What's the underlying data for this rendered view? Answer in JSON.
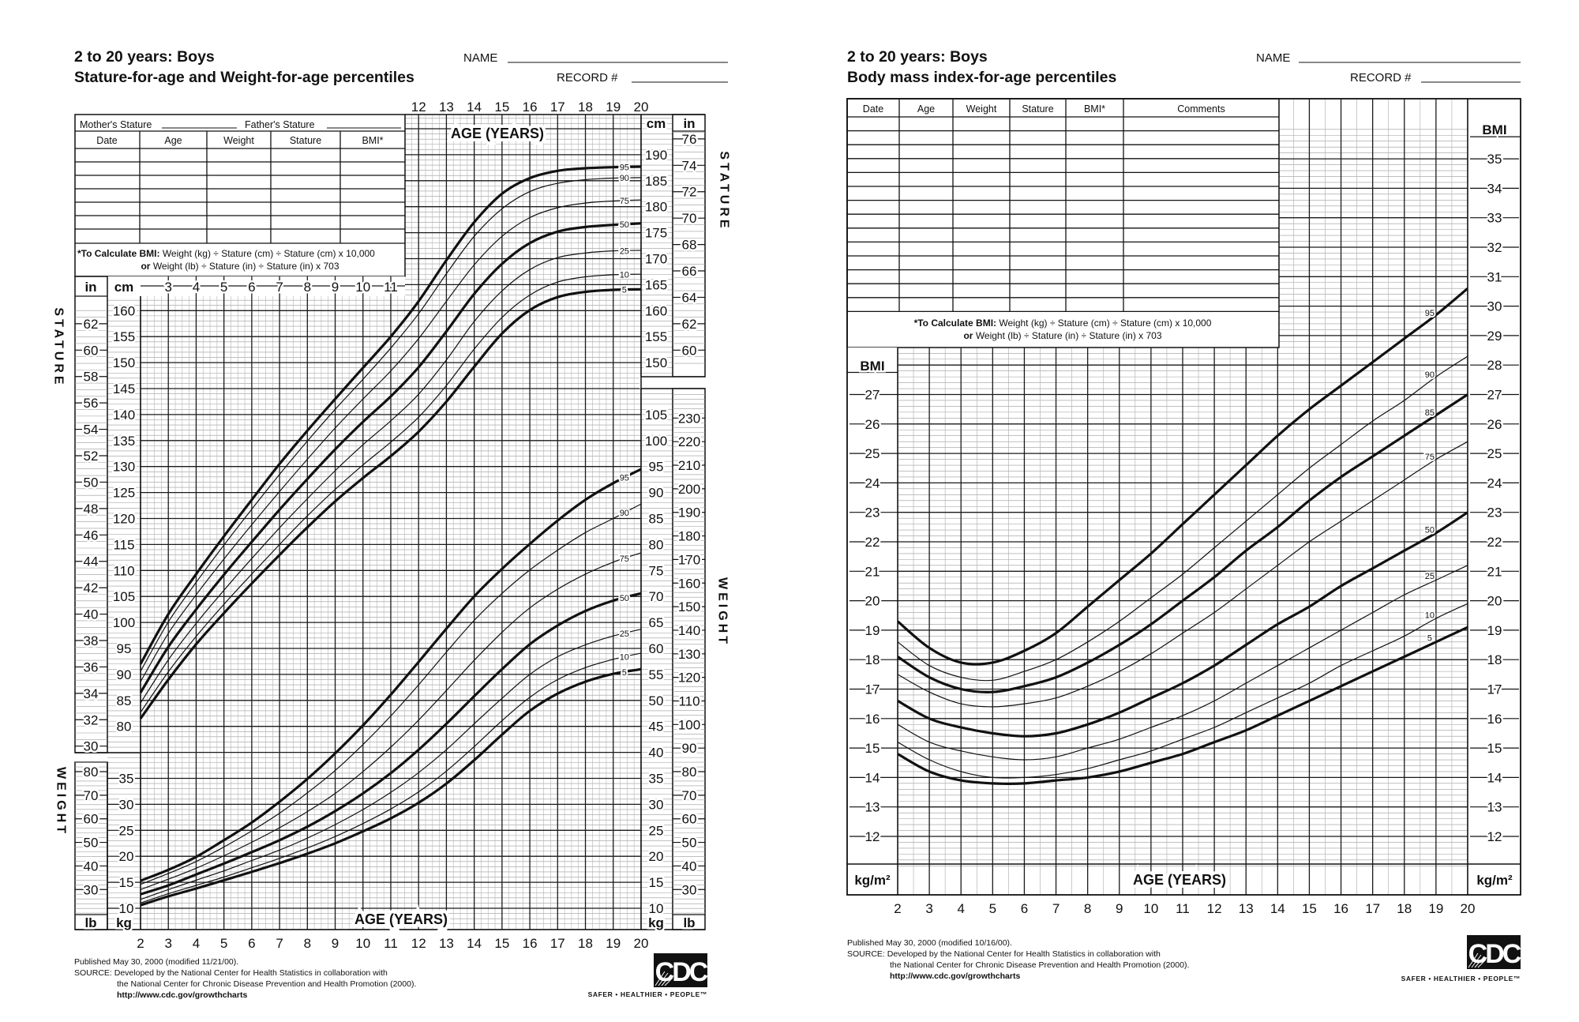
{
  "left_sheet": {
    "title_line1": "2 to 20 years: Boys",
    "title_line2": "Stature-for-age and Weight-for-age percentiles",
    "name_label": "NAME",
    "record_label": "RECORD #",
    "mothers_stature": "Mother's Stature",
    "fathers_stature": "Father's Stature",
    "table_headers": [
      "Date",
      "Age",
      "Weight",
      "Stature",
      "BMI*"
    ],
    "formula_bold": "*To Calculate BMI:",
    "formula_line1": "Weight (kg) ÷ Stature (cm) ÷ Stature (cm) x 10,000",
    "formula_bold2": "or",
    "formula_line2": "Weight (lb) ÷ Stature (in) ÷ Stature (in) x 703",
    "age_axis_top": "AGE (YEARS)",
    "age_axis_bottom": "AGE (YEARS)",
    "stature_label": "STATURE",
    "weight_label": "WEIGHT",
    "unit_in": "in",
    "unit_cm": "cm",
    "unit_lb": "lb",
    "unit_kg": "kg",
    "footer": {
      "published": "Published May 30, 2000 (modified 11/21/00).",
      "source1": "SOURCE: Developed by the National Center for Health Statistics in collaboration with",
      "source2": "the National Center for Chronic Disease Prevention and Health Promotion (2000).",
      "url": "http://www.cdc.gov/growthcharts"
    },
    "logo_text": "CDC",
    "tagline": "SAFER • HEALTHIER • PEOPLE™"
  },
  "right_sheet": {
    "title_line1": "2 to 20 years: Boys",
    "title_line2": "Body mass index-for-age percentiles",
    "name_label": "NAME",
    "record_label": "RECORD #",
    "table_headers": [
      "Date",
      "Age",
      "Weight",
      "Stature",
      "BMI*",
      "Comments"
    ],
    "formula_bold": "*To Calculate BMI:",
    "formula_line1": "Weight (kg) ÷ Stature (cm) ÷ Stature (cm) x 10,000",
    "formula_bold2": "or",
    "formula_line2": "Weight (lb) ÷ Stature (in) ÷ Stature (in) x 703",
    "bmi_label_left": "BMI",
    "bmi_label_right": "BMI",
    "unit_left": "kg/m²",
    "unit_right": "kg/m²",
    "age_axis": "AGE (YEARS)",
    "footer": {
      "published": "Published May 30, 2000 (modified 10/16/00).",
      "source1": "SOURCE: Developed by the National Center for Health Statistics in collaboration with",
      "source2": "the National Center for Chronic Disease Prevention and Health Promotion (2000).",
      "url": "http://www.cdc.gov/growthcharts"
    },
    "logo_text": "CDC",
    "tagline": "SAFER • HEALTHIER • PEOPLE™"
  },
  "colors": {
    "ink": "#111111",
    "grid_minor": "#9a9a9a",
    "grid_major": "#1a1a1a",
    "paper": "#ffffff"
  },
  "chart_data": [
    {
      "type": "line",
      "xlabel": "AGE (YEARS)",
      "ylabel": "STATURE",
      "x": [
        2,
        3,
        4,
        5,
        6,
        7,
        8,
        9,
        10,
        11,
        12,
        13,
        14,
        15,
        16,
        17,
        18,
        19,
        20
      ],
      "x_ticks": [
        "2",
        "3",
        "4",
        "5",
        "6",
        "7",
        "8",
        "9",
        "10",
        "11",
        "12",
        "13",
        "14",
        "15",
        "16",
        "17",
        "18",
        "19",
        "20"
      ],
      "xlim": [
        2,
        20
      ],
      "y_units": [
        "cm",
        "in"
      ],
      "y_ticks_cm_left": [
        "80",
        "85",
        "90",
        "95",
        "100",
        "105",
        "110",
        "115",
        "120",
        "125",
        "130",
        "135",
        "140",
        "145",
        "150",
        "155",
        "160"
      ],
      "y_ticks_cm_right": [
        "150",
        "155",
        "160",
        "165",
        "170",
        "175",
        "180",
        "185",
        "190"
      ],
      "y_ticks_in_left": [
        "30",
        "32",
        "34",
        "36",
        "38",
        "40",
        "42",
        "44",
        "46",
        "48",
        "50",
        "52",
        "54",
        "56",
        "58",
        "60",
        "62"
      ],
      "y_ticks_in_right": [
        "60",
        "62",
        "64",
        "66",
        "68",
        "70",
        "72",
        "74",
        "76"
      ],
      "grid": true,
      "series": [
        {
          "name": "95",
          "values": [
            92.0,
            101.6,
            109.3,
            116.6,
            123.6,
            130.5,
            136.9,
            143.0,
            149.0,
            155.0,
            161.8,
            169.7,
            177.0,
            182.5,
            185.5,
            186.9,
            187.4,
            187.6,
            187.7
          ]
        },
        {
          "name": "90",
          "values": [
            90.6,
            100.1,
            107.7,
            114.9,
            121.8,
            128.5,
            134.9,
            141.0,
            146.8,
            152.8,
            159.4,
            167.1,
            174.3,
            179.6,
            182.9,
            184.5,
            185.2,
            185.5,
            185.6
          ]
        },
        {
          "name": "75",
          "values": [
            88.6,
            97.9,
            105.3,
            112.2,
            118.8,
            125.2,
            131.4,
            137.4,
            143.0,
            148.4,
            154.6,
            161.8,
            168.8,
            174.3,
            177.9,
            179.8,
            180.7,
            181.1,
            181.3
          ]
        },
        {
          "name": "50",
          "values": [
            86.5,
            95.3,
            102.5,
            109.2,
            115.5,
            121.7,
            127.6,
            133.3,
            138.6,
            143.5,
            149.1,
            156.0,
            163.2,
            169.0,
            173.0,
            175.2,
            176.1,
            176.5,
            176.8
          ]
        },
        {
          "name": "25",
          "values": [
            84.5,
            92.8,
            99.8,
            106.2,
            112.3,
            118.2,
            123.8,
            129.2,
            134.2,
            138.8,
            143.9,
            150.5,
            157.9,
            163.8,
            167.9,
            170.2,
            171.1,
            171.5,
            171.6
          ]
        },
        {
          "name": "10",
          "values": [
            82.7,
            90.5,
            97.3,
            103.5,
            109.3,
            115.0,
            120.5,
            125.6,
            130.3,
            134.7,
            139.5,
            145.6,
            152.6,
            158.7,
            163.0,
            165.5,
            166.5,
            166.9,
            167.0
          ]
        },
        {
          "name": "5",
          "values": [
            81.5,
            89.0,
            95.8,
            101.8,
            107.5,
            113.0,
            118.3,
            123.3,
            127.8,
            132.0,
            136.7,
            142.5,
            149.2,
            155.6,
            160.1,
            162.6,
            163.6,
            164.0,
            164.1
          ]
        }
      ]
    },
    {
      "type": "line",
      "xlabel": "AGE (YEARS)",
      "ylabel": "WEIGHT",
      "x": [
        2,
        3,
        4,
        5,
        6,
        7,
        8,
        9,
        10,
        11,
        12,
        13,
        14,
        15,
        16,
        17,
        18,
        19,
        20
      ],
      "xlim": [
        2,
        20
      ],
      "y_units": [
        "kg",
        "lb"
      ],
      "y_ticks_kg_left": [
        "10",
        "15",
        "20",
        "25",
        "30",
        "35"
      ],
      "y_ticks_kg_right": [
        "10",
        "15",
        "20",
        "25",
        "30",
        "35",
        "40",
        "45",
        "50",
        "55",
        "60",
        "65",
        "70",
        "75",
        "80",
        "85",
        "90",
        "95",
        "100",
        "105"
      ],
      "y_ticks_lb_left": [
        "30",
        "40",
        "50",
        "60",
        "70",
        "80"
      ],
      "y_ticks_lb_right": [
        "30",
        "40",
        "50",
        "60",
        "70",
        "80",
        "90",
        "100",
        "110",
        "120",
        "130",
        "140",
        "150",
        "160",
        "170",
        "180",
        "190",
        "200",
        "210",
        "220",
        "230"
      ],
      "grid": true,
      "series": [
        {
          "name": "95",
          "values": [
            15.3,
            17.4,
            19.9,
            23.1,
            26.5,
            30.5,
            34.9,
            39.8,
            45.2,
            51.1,
            57.4,
            63.8,
            70.0,
            75.3,
            80.1,
            84.6,
            88.6,
            91.8,
            94.5
          ]
        },
        {
          "name": "90",
          "values": [
            14.6,
            16.7,
            19.0,
            21.8,
            24.9,
            28.3,
            32.2,
            36.5,
            41.5,
            47.0,
            53.0,
            59.3,
            65.4,
            70.6,
            75.1,
            78.9,
            82.3,
            85.0,
            87.8
          ]
        },
        {
          "name": "75",
          "values": [
            13.6,
            15.6,
            17.7,
            20.1,
            22.7,
            25.5,
            28.6,
            32.1,
            36.3,
            41.0,
            46.2,
            51.9,
            57.7,
            63.1,
            67.8,
            71.4,
            74.3,
            76.6,
            78.4
          ]
        },
        {
          "name": "50",
          "values": [
            12.7,
            14.4,
            16.5,
            18.6,
            20.8,
            23.1,
            25.7,
            28.7,
            32.1,
            36.0,
            40.5,
            45.5,
            50.8,
            56.0,
            60.8,
            64.4,
            67.2,
            69.2,
            70.6
          ]
        },
        {
          "name": "25",
          "values": [
            11.7,
            13.6,
            15.4,
            17.2,
            19.2,
            21.2,
            23.5,
            26.1,
            29.0,
            32.3,
            36.1,
            40.5,
            45.5,
            50.4,
            55.0,
            58.4,
            60.7,
            62.4,
            63.7
          ]
        },
        {
          "name": "10",
          "values": [
            11.0,
            12.8,
            14.4,
            16.0,
            17.8,
            19.6,
            21.6,
            23.8,
            26.3,
            29.1,
            32.4,
            36.4,
            41.1,
            46.1,
            50.6,
            54.0,
            56.3,
            57.9,
            59.1
          ]
        },
        {
          "name": "5",
          "values": [
            10.6,
            12.3,
            13.8,
            15.4,
            17.0,
            18.7,
            20.5,
            22.5,
            24.8,
            27.3,
            30.3,
            34.0,
            38.5,
            43.4,
            48.0,
            51.3,
            53.6,
            55.1,
            56.0
          ]
        }
      ]
    },
    {
      "type": "line",
      "xlabel": "AGE (YEARS)",
      "ylabel": "BMI",
      "y_units": "kg/m²",
      "x": [
        2,
        3,
        4,
        5,
        6,
        7,
        8,
        9,
        10,
        11,
        12,
        13,
        14,
        15,
        16,
        17,
        18,
        19,
        20
      ],
      "x_ticks": [
        "2",
        "3",
        "4",
        "5",
        "6",
        "7",
        "8",
        "9",
        "10",
        "11",
        "12",
        "13",
        "14",
        "15",
        "16",
        "17",
        "18",
        "19",
        "20"
      ],
      "xlim": [
        2,
        20
      ],
      "ylim": [
        12,
        36
      ],
      "y_ticks_left": [
        "12",
        "13",
        "14",
        "15",
        "16",
        "17",
        "18",
        "19",
        "20",
        "21",
        "22",
        "23",
        "24",
        "25",
        "26",
        "27"
      ],
      "y_ticks_right": [
        "12",
        "13",
        "14",
        "15",
        "16",
        "17",
        "18",
        "19",
        "20",
        "21",
        "22",
        "23",
        "24",
        "25",
        "26",
        "27",
        "28",
        "29",
        "30",
        "31",
        "32",
        "33",
        "34",
        "35"
      ],
      "grid": true,
      "series": [
        {
          "name": "95",
          "values": [
            19.3,
            18.4,
            17.9,
            17.9,
            18.3,
            18.9,
            19.8,
            20.7,
            21.6,
            22.6,
            23.6,
            24.6,
            25.6,
            26.5,
            27.3,
            28.1,
            28.9,
            29.7,
            30.6
          ]
        },
        {
          "name": "90",
          "values": [
            18.6,
            17.8,
            17.4,
            17.3,
            17.6,
            18.0,
            18.6,
            19.3,
            20.1,
            20.9,
            21.8,
            22.7,
            23.6,
            24.5,
            25.3,
            26.1,
            26.8,
            27.6,
            28.3
          ]
        },
        {
          "name": "85",
          "values": [
            18.1,
            17.4,
            17.0,
            16.9,
            17.1,
            17.4,
            17.9,
            18.5,
            19.2,
            20.0,
            20.8,
            21.7,
            22.5,
            23.4,
            24.2,
            24.9,
            25.6,
            26.3,
            27.0
          ]
        },
        {
          "name": "75",
          "values": [
            17.5,
            16.9,
            16.5,
            16.4,
            16.5,
            16.7,
            17.1,
            17.6,
            18.2,
            18.9,
            19.6,
            20.4,
            21.2,
            22.0,
            22.7,
            23.4,
            24.1,
            24.8,
            25.4
          ]
        },
        {
          "name": "50",
          "values": [
            16.6,
            16.0,
            15.7,
            15.5,
            15.4,
            15.5,
            15.8,
            16.2,
            16.7,
            17.2,
            17.8,
            18.5,
            19.2,
            19.8,
            20.5,
            21.1,
            21.7,
            22.3,
            23.0
          ]
        },
        {
          "name": "25",
          "values": [
            15.8,
            15.2,
            14.9,
            14.7,
            14.6,
            14.7,
            15.0,
            15.3,
            15.7,
            16.1,
            16.6,
            17.2,
            17.8,
            18.4,
            19.0,
            19.6,
            20.2,
            20.7,
            21.2
          ]
        },
        {
          "name": "10",
          "values": [
            15.2,
            14.6,
            14.2,
            14.0,
            14.0,
            14.1,
            14.3,
            14.6,
            14.9,
            15.3,
            15.7,
            16.2,
            16.7,
            17.2,
            17.8,
            18.3,
            18.8,
            19.4,
            19.9
          ]
        },
        {
          "name": "5",
          "values": [
            14.8,
            14.2,
            13.9,
            13.8,
            13.8,
            13.9,
            14.0,
            14.2,
            14.5,
            14.8,
            15.2,
            15.6,
            16.1,
            16.6,
            17.1,
            17.6,
            18.1,
            18.6,
            19.1
          ]
        }
      ]
    }
  ]
}
